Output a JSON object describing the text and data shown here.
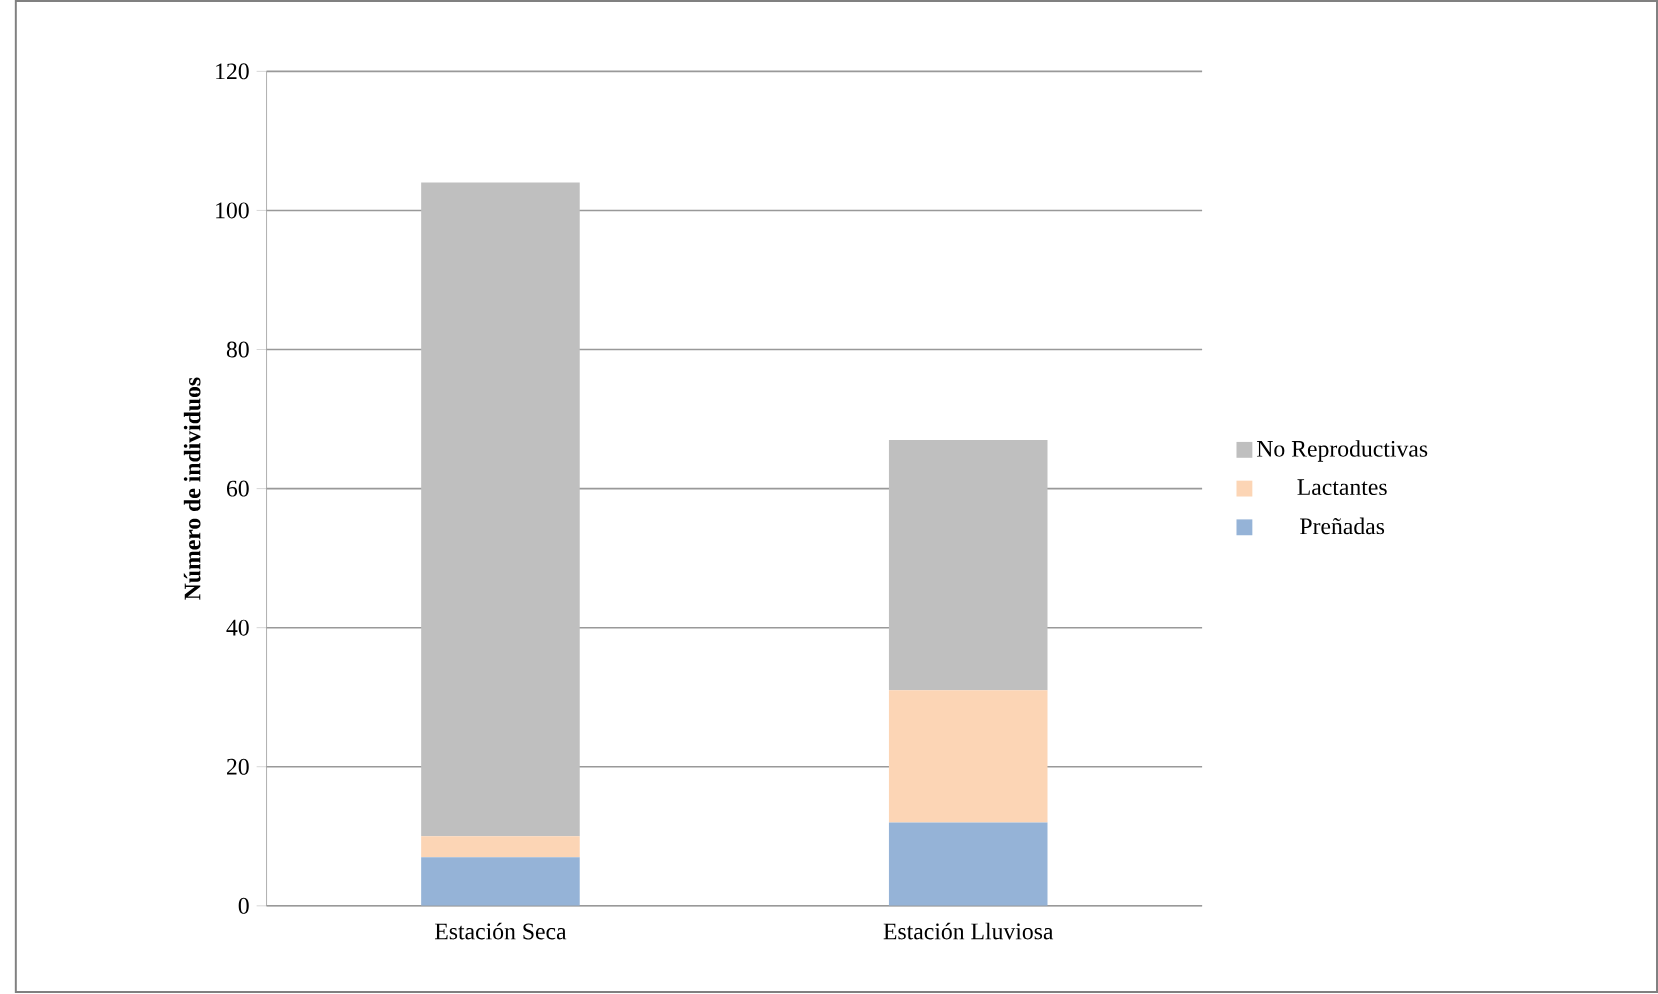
{
  "chart_data": {
    "type": "bar",
    "stacked": true,
    "ylabel": "Número de individuos",
    "categories": [
      "Estación Seca",
      "Estación Lluviosa"
    ],
    "series": [
      {
        "name": "Preñadas",
        "color": "#95b3d7",
        "values": [
          7,
          12
        ]
      },
      {
        "name": "Lactantes",
        "color": "#fcd5b5",
        "values": [
          3,
          19
        ]
      },
      {
        "name": "No Reproductivas",
        "color": "#bfbfbf",
        "values": [
          94,
          36
        ]
      }
    ],
    "ylim": [
      0,
      120
    ],
    "yticks": [
      0,
      20,
      40,
      60,
      80,
      100,
      120
    ],
    "grid": "y",
    "legend": "right"
  }
}
